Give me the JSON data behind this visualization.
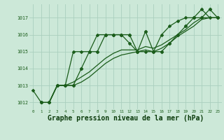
{
  "background_color": "#cce8d8",
  "grid_color": "#aacfbe",
  "line_color": "#1a5c1a",
  "marker_color": "#1a5c1a",
  "xlabel": "Graphe pression niveau de la mer (hPa)",
  "xlabel_fontsize": 7,
  "ylabel_ticks": [
    1012,
    1013,
    1014,
    1015,
    1016,
    1017
  ],
  "xlim": [
    -0.5,
    23.5
  ],
  "ylim": [
    1011.6,
    1017.8
  ],
  "lines": [
    {
      "x": [
        0,
        1,
        2,
        3,
        4,
        5,
        6,
        7,
        8,
        9,
        10,
        11,
        12,
        13,
        14,
        15,
        16,
        17,
        18,
        19,
        20,
        21,
        22,
        23
      ],
      "y": [
        1012.7,
        1012.0,
        1012.0,
        1013.0,
        1013.0,
        1015.0,
        1015.0,
        1015.0,
        1016.0,
        1016.0,
        1016.0,
        1016.0,
        1015.5,
        1015.0,
        1015.0,
        1015.0,
        1016.0,
        1016.5,
        1016.8,
        1017.0,
        1017.0,
        1017.5,
        1017.0,
        1017.0
      ],
      "marker": "D",
      "markersize": 2.2,
      "lw": 0.9
    },
    {
      "x": [
        1,
        2,
        3,
        4,
        5,
        6,
        7,
        8,
        9,
        10,
        11,
        12,
        13,
        14,
        15,
        16,
        17,
        18,
        19,
        20,
        21,
        22,
        23
      ],
      "y": [
        1012.0,
        1012.0,
        1013.0,
        1013.0,
        1013.0,
        1014.0,
        1015.0,
        1015.0,
        1016.0,
        1016.0,
        1016.0,
        1016.0,
        1015.0,
        1016.2,
        1015.0,
        1015.0,
        1015.5,
        1016.0,
        1016.5,
        1017.0,
        1017.0,
        1017.5,
        1017.0
      ],
      "marker": "P",
      "markersize": 3.0,
      "lw": 0.9
    },
    {
      "x": [
        2,
        3,
        4,
        5,
        6,
        7,
        8,
        9,
        10,
        11,
        12,
        13,
        14,
        15,
        16,
        17,
        18,
        19,
        20,
        21,
        22,
        23
      ],
      "y": [
        1012.0,
        1013.0,
        1013.0,
        1013.2,
        1013.5,
        1013.8,
        1014.2,
        1014.6,
        1014.9,
        1015.1,
        1015.1,
        1015.1,
        1015.3,
        1015.2,
        1015.4,
        1015.7,
        1016.0,
        1016.3,
        1016.7,
        1017.0,
        1017.0,
        1017.0
      ],
      "marker": null,
      "markersize": 0,
      "lw": 0.9
    },
    {
      "x": [
        2,
        3,
        4,
        5,
        6,
        7,
        8,
        9,
        10,
        11,
        12,
        13,
        14,
        15,
        16,
        17,
        18,
        19,
        20,
        21,
        22,
        23
      ],
      "y": [
        1012.0,
        1013.0,
        1013.0,
        1013.0,
        1013.2,
        1013.5,
        1013.9,
        1014.3,
        1014.6,
        1014.8,
        1014.9,
        1015.0,
        1015.1,
        1015.0,
        1015.2,
        1015.5,
        1015.9,
        1016.2,
        1016.5,
        1016.9,
        1017.0,
        1017.0
      ],
      "marker": null,
      "markersize": 0,
      "lw": 0.9
    }
  ]
}
